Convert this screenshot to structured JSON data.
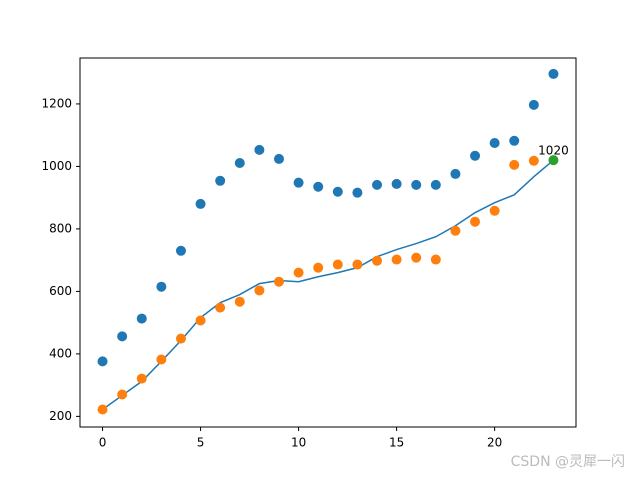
{
  "chart_data": {
    "type": "scatter",
    "xlim": [
      -1.15,
      24.15
    ],
    "ylim": [
      166,
      1347
    ],
    "xticks": [
      0,
      5,
      10,
      15,
      20
    ],
    "yticks": [
      200,
      400,
      600,
      800,
      1000,
      1200
    ],
    "grid": false,
    "series": [
      {
        "mode": "marker",
        "color": "#1f77b4",
        "x": [
          0,
          1,
          2,
          3,
          4,
          5,
          6,
          7,
          8,
          9,
          10,
          11,
          12,
          13,
          14,
          15,
          16,
          17,
          18,
          19,
          20,
          21,
          22,
          23
        ],
        "values": [
          376,
          456,
          513,
          615,
          730,
          880,
          954,
          1011,
          1053,
          1024,
          948,
          935,
          919,
          916,
          941,
          944,
          941,
          941,
          976,
          1034,
          1075,
          1082,
          1197,
          1296
        ]
      },
      {
        "mode": "marker",
        "color": "#ff7f0e",
        "x": [
          0,
          1,
          2,
          3,
          4,
          5,
          6,
          7,
          8,
          9,
          10,
          11,
          12,
          13,
          14,
          15,
          16,
          17,
          18,
          19,
          20,
          21,
          22
        ],
        "values": [
          222,
          270,
          321,
          382,
          449,
          507,
          548,
          567,
          603,
          631,
          660,
          676,
          686,
          686,
          698,
          702,
          708,
          702,
          794,
          823,
          858,
          1005,
          1018
        ]
      },
      {
        "mode": "line",
        "color": "#1f77b4",
        "x": [
          0,
          1,
          2,
          3,
          4,
          5,
          6,
          7,
          8,
          9,
          10,
          11,
          12,
          13,
          14,
          15,
          16,
          17,
          18,
          19,
          20,
          21,
          22,
          23
        ],
        "values": [
          222,
          267,
          312,
          376,
          443,
          516,
          564,
          590,
          625,
          635,
          631,
          647,
          660,
          676,
          711,
          734,
          753,
          775,
          810,
          852,
          884,
          909,
          967,
          1020
        ]
      },
      {
        "mode": "marker",
        "color": "#2ca02c",
        "x": [
          23
        ],
        "values": [
          1020
        ]
      }
    ],
    "annotations": [
      {
        "text": "1020",
        "x": 23,
        "y": 1020
      }
    ],
    "watermark": "CSDN @灵犀一闪"
  }
}
